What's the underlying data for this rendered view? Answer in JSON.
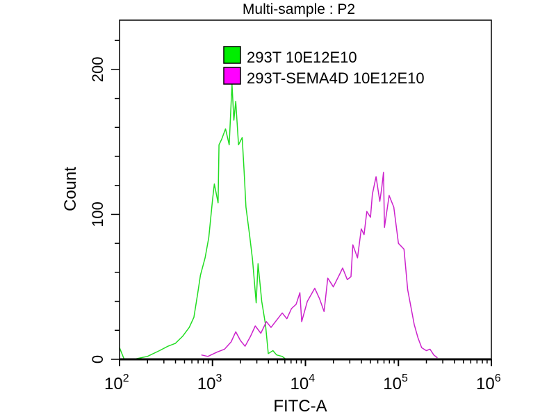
{
  "chart_data": {
    "type": "line",
    "title": "Multi-sample : P2",
    "xlabel": "FITC-A",
    "ylabel": "Count",
    "x_scale": "log10",
    "xlim_log10": [
      2,
      6
    ],
    "ylim": [
      0,
      234
    ],
    "x_tick_labels": [
      {
        "base": "10",
        "exp": "2",
        "value_log10": 2
      },
      {
        "base": "10",
        "exp": "3",
        "value_log10": 3
      },
      {
        "base": "10",
        "exp": "4",
        "value_log10": 4
      },
      {
        "base": "10",
        "exp": "5",
        "value_log10": 5
      },
      {
        "base": "10",
        "exp": "6",
        "value_log10": 6
      }
    ],
    "y_ticks": [
      0,
      100,
      200
    ],
    "y_tick_labels": [
      "0",
      "100",
      "200"
    ],
    "y_minor_step": 20,
    "legend_placement": "top-center",
    "series": [
      {
        "name": "293T 10E12E10",
        "color": "#22dd22",
        "swatch": "#00ee00",
        "x_log10": [
          2.0,
          2.05,
          2.15,
          2.3,
          2.43,
          2.52,
          2.6,
          2.68,
          2.75,
          2.8,
          2.84,
          2.87,
          2.92,
          2.96,
          3.0,
          3.02,
          3.06,
          3.07,
          3.1,
          3.14,
          3.18,
          3.21,
          3.23,
          3.25,
          3.28,
          3.32,
          3.34,
          3.36,
          3.4,
          3.43,
          3.47,
          3.49,
          3.53,
          3.57,
          3.6,
          3.65,
          3.69,
          3.75,
          3.79,
          3.85
        ],
        "counts": [
          8,
          0,
          0,
          2,
          6,
          9,
          11,
          16,
          22,
          29,
          45,
          58,
          70,
          84,
          110,
          121,
          108,
          148,
          152,
          159,
          148,
          190,
          165,
          178,
          148,
          153,
          130,
          105,
          85,
          69,
          39,
          66,
          40,
          24,
          4,
          6,
          3,
          2,
          0,
          0
        ]
      },
      {
        "name": "293T-SEMA4D 10E12E10",
        "color": "#cc22cc",
        "swatch": "#ff00ff",
        "x_log10": [
          2.88,
          2.95,
          3.05,
          3.13,
          3.2,
          3.25,
          3.3,
          3.35,
          3.41,
          3.46,
          3.52,
          3.58,
          3.63,
          3.69,
          3.75,
          3.8,
          3.85,
          3.9,
          3.94,
          3.96,
          4.02,
          4.1,
          4.15,
          4.2,
          4.24,
          4.3,
          4.37,
          4.4,
          4.45,
          4.49,
          4.51,
          4.56,
          4.6,
          4.63,
          4.66,
          4.7,
          4.72,
          4.76,
          4.8,
          4.82,
          4.84,
          4.85,
          4.9,
          4.95,
          5.0,
          5.06,
          5.1,
          5.17,
          5.21,
          5.25,
          5.3,
          5.34,
          5.38,
          5.42
        ],
        "counts": [
          3,
          2,
          5,
          7,
          12,
          19,
          13,
          9,
          16,
          23,
          18,
          26,
          22,
          27,
          32,
          28,
          35,
          38,
          46,
          26,
          40,
          49,
          42,
          33,
          56,
          50,
          59,
          63,
          55,
          57,
          79,
          70,
          90,
          86,
          102,
          98,
          114,
          126,
          109,
          118,
          129,
          91,
          113,
          105,
          80,
          76,
          48,
          24,
          15,
          8,
          6,
          7,
          3,
          1
        ]
      }
    ]
  }
}
